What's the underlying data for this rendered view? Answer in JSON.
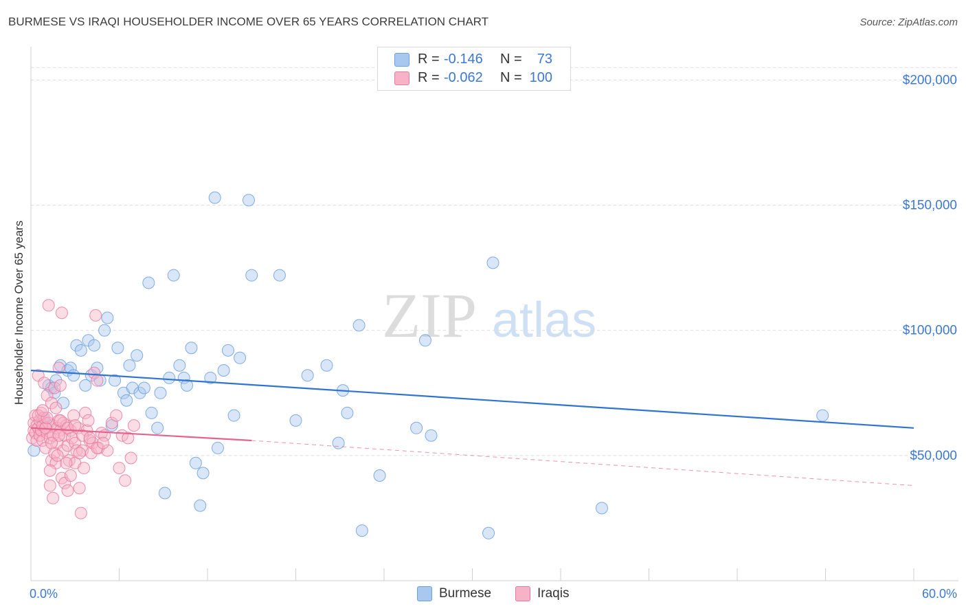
{
  "title": "BURMESE VS IRAQI HOUSEHOLDER INCOME OVER 65 YEARS CORRELATION CHART",
  "source": "Source: ZipAtlas.com",
  "watermark": {
    "zip": "ZIP",
    "atlas": "atlas"
  },
  "colors": {
    "blue_fill": "#a9c8f0",
    "blue_stroke": "#6b9fdf",
    "blue_line": "#2f74d0",
    "pink_fill": "#f6b3c8",
    "pink_stroke": "#e9799e",
    "pink_line": "#e5628f",
    "axis_text": "#3b78d4",
    "grid": "#dcdcdc"
  },
  "legend": [
    {
      "r_label": "R =",
      "r_value": "-0.146",
      "n_label": "N =",
      "n_value": "73",
      "swatch": "blue"
    },
    {
      "r_label": "R =",
      "r_value": "-0.062",
      "n_label": "N =",
      "n_value": "100",
      "swatch": "pink"
    }
  ],
  "bottom_legend": [
    {
      "label": "Burmese"
    },
    {
      "label": "Iraqis"
    }
  ],
  "chart_data": {
    "type": "scatter",
    "title": "BURMESE VS IRAQI HOUSEHOLDER INCOME OVER 65 YEARS CORRELATION CHART",
    "xlabel": "",
    "ylabel": "Householder Income Over 65 years",
    "xlim": [
      0,
      60
    ],
    "ylim": [
      0,
      210000
    ],
    "x_tick_labels": [
      {
        "value": 0,
        "label": "0.0%"
      },
      {
        "value": 60,
        "label": "60.0%"
      }
    ],
    "y_tick_labels": [
      {
        "value": 50000,
        "label": "$50,000"
      },
      {
        "value": 100000,
        "label": "$100,000"
      },
      {
        "value": 150000,
        "label": "$150,000"
      },
      {
        "value": 200000,
        "label": "$200,000"
      }
    ],
    "grid": true,
    "legend_position": "top-center",
    "series": [
      {
        "name": "Burmese",
        "color": "blue",
        "trend": {
          "x": [
            0,
            60
          ],
          "y": [
            84000,
            61000
          ],
          "style": "solid"
        },
        "points": [
          [
            0.2,
            52000
          ],
          [
            0.5,
            61000
          ],
          [
            0.8,
            65000
          ],
          [
            1.0,
            63000
          ],
          [
            1.2,
            78000
          ],
          [
            1.4,
            77000
          ],
          [
            1.6,
            75000
          ],
          [
            1.7,
            80000
          ],
          [
            2.0,
            86000
          ],
          [
            2.2,
            71000
          ],
          [
            2.5,
            84000
          ],
          [
            2.7,
            85000
          ],
          [
            2.9,
            82000
          ],
          [
            3.1,
            94000
          ],
          [
            3.4,
            92000
          ],
          [
            3.7,
            78000
          ],
          [
            3.9,
            96000
          ],
          [
            4.1,
            82000
          ],
          [
            4.3,
            94000
          ],
          [
            4.5,
            85000
          ],
          [
            4.7,
            80000
          ],
          [
            5.0,
            100000
          ],
          [
            5.2,
            105000
          ],
          [
            5.5,
            62000
          ],
          [
            5.7,
            80000
          ],
          [
            5.9,
            93000
          ],
          [
            6.3,
            75000
          ],
          [
            6.5,
            72000
          ],
          [
            6.7,
            86000
          ],
          [
            6.9,
            77000
          ],
          [
            7.2,
            90000
          ],
          [
            7.4,
            75000
          ],
          [
            7.7,
            77000
          ],
          [
            8.0,
            119000
          ],
          [
            8.2,
            67000
          ],
          [
            8.6,
            61000
          ],
          [
            8.8,
            75000
          ],
          [
            9.1,
            35000
          ],
          [
            9.4,
            81000
          ],
          [
            9.7,
            122000
          ],
          [
            10.1,
            86000
          ],
          [
            10.4,
            81000
          ],
          [
            10.6,
            78000
          ],
          [
            10.9,
            93000
          ],
          [
            11.2,
            47000
          ],
          [
            11.5,
            30000
          ],
          [
            11.7,
            43000
          ],
          [
            12.2,
            81000
          ],
          [
            12.5,
            153000
          ],
          [
            12.7,
            53000
          ],
          [
            13.1,
            84000
          ],
          [
            13.4,
            92000
          ],
          [
            13.8,
            66000
          ],
          [
            14.2,
            89000
          ],
          [
            14.8,
            152000
          ],
          [
            15.0,
            122000
          ],
          [
            16.9,
            122000
          ],
          [
            18.0,
            64000
          ],
          [
            18.8,
            82000
          ],
          [
            20.1,
            86000
          ],
          [
            20.9,
            55000
          ],
          [
            21.2,
            76000
          ],
          [
            21.5,
            67000
          ],
          [
            22.3,
            102000
          ],
          [
            22.5,
            20000
          ],
          [
            23.7,
            42000
          ],
          [
            26.2,
            61000
          ],
          [
            26.8,
            96000
          ],
          [
            27.2,
            58000
          ],
          [
            31.1,
            19000
          ],
          [
            31.4,
            127000
          ],
          [
            38.8,
            29000
          ],
          [
            53.8,
            66000
          ]
        ]
      },
      {
        "name": "Iraqis",
        "color": "pink",
        "trend": {
          "x": [
            0,
            15
          ],
          "y": [
            61000,
            56000
          ],
          "style": "solid"
        },
        "trend_extension": {
          "x": [
            15,
            60
          ],
          "y": [
            56000,
            38000
          ],
          "style": "dashed"
        },
        "points": [
          [
            0.1,
            57000
          ],
          [
            0.2,
            60000
          ],
          [
            0.2,
            63000
          ],
          [
            0.3,
            66000
          ],
          [
            0.3,
            59000
          ],
          [
            0.4,
            62000
          ],
          [
            0.4,
            56000
          ],
          [
            0.5,
            61000
          ],
          [
            0.5,
            82000
          ],
          [
            0.6,
            64000
          ],
          [
            0.6,
            58000
          ],
          [
            0.7,
            67000
          ],
          [
            0.7,
            60000
          ],
          [
            0.8,
            62000
          ],
          [
            0.8,
            56000
          ],
          [
            0.9,
            65000
          ],
          [
            0.9,
            79000
          ],
          [
            1.0,
            61000
          ],
          [
            1.0,
            53000
          ],
          [
            1.1,
            74000
          ],
          [
            1.1,
            59000
          ],
          [
            1.2,
            63000
          ],
          [
            1.2,
            110000
          ],
          [
            1.3,
            38000
          ],
          [
            1.3,
            57000
          ],
          [
            1.4,
            71000
          ],
          [
            1.4,
            48000
          ],
          [
            1.5,
            33000
          ],
          [
            1.5,
            62000
          ],
          [
            1.6,
            77000
          ],
          [
            1.6,
            51000
          ],
          [
            1.7,
            69000
          ],
          [
            1.7,
            47000
          ],
          [
            1.8,
            61000
          ],
          [
            1.8,
            55000
          ],
          [
            1.9,
            64000
          ],
          [
            1.9,
            85000
          ],
          [
            2.0,
            78000
          ],
          [
            2.0,
            60000
          ],
          [
            2.1,
            107000
          ],
          [
            2.1,
            41000
          ],
          [
            2.2,
            52000
          ],
          [
            2.3,
            58000
          ],
          [
            2.3,
            39000
          ],
          [
            2.4,
            62000
          ],
          [
            2.5,
            54000
          ],
          [
            2.5,
            36000
          ],
          [
            2.6,
            48000
          ],
          [
            2.7,
            60000
          ],
          [
            2.8,
            57000
          ],
          [
            2.9,
            66000
          ],
          [
            3.0,
            55000
          ],
          [
            3.0,
            47000
          ],
          [
            3.1,
            52000
          ],
          [
            3.2,
            61000
          ],
          [
            3.3,
            37000
          ],
          [
            3.4,
            27000
          ],
          [
            3.5,
            52000
          ],
          [
            3.6,
            45000
          ],
          [
            3.7,
            67000
          ],
          [
            3.8,
            60000
          ],
          [
            3.9,
            64000
          ],
          [
            4.0,
            56000
          ],
          [
            4.1,
            51000
          ],
          [
            4.2,
            55000
          ],
          [
            4.3,
            83000
          ],
          [
            4.4,
            106000
          ],
          [
            4.5,
            80000
          ],
          [
            4.6,
            53000
          ],
          [
            4.8,
            59000
          ],
          [
            5.0,
            58000
          ],
          [
            5.2,
            52000
          ],
          [
            5.5,
            63000
          ],
          [
            5.8,
            66000
          ],
          [
            6.0,
            45000
          ],
          [
            6.2,
            58000
          ],
          [
            6.4,
            40000
          ],
          [
            6.6,
            57000
          ],
          [
            6.8,
            49000
          ],
          [
            7.0,
            62000
          ],
          [
            1.3,
            44000
          ],
          [
            2.2,
            63000
          ],
          [
            0.5,
            66000
          ],
          [
            1.0,
            61000
          ],
          [
            1.5,
            58000
          ],
          [
            2.0,
            64000
          ],
          [
            2.5,
            61000
          ],
          [
            3.0,
            62000
          ],
          [
            3.5,
            58000
          ],
          [
            4.0,
            57000
          ],
          [
            4.5,
            53000
          ],
          [
            1.8,
            50000
          ],
          [
            1.1,
            65000
          ],
          [
            2.4,
            47000
          ],
          [
            1.9,
            58000
          ],
          [
            0.8,
            68000
          ],
          [
            1.4,
            55000
          ],
          [
            2.7,
            42000
          ],
          [
            3.3,
            51000
          ],
          [
            4.9,
            55000
          ]
        ]
      }
    ]
  }
}
